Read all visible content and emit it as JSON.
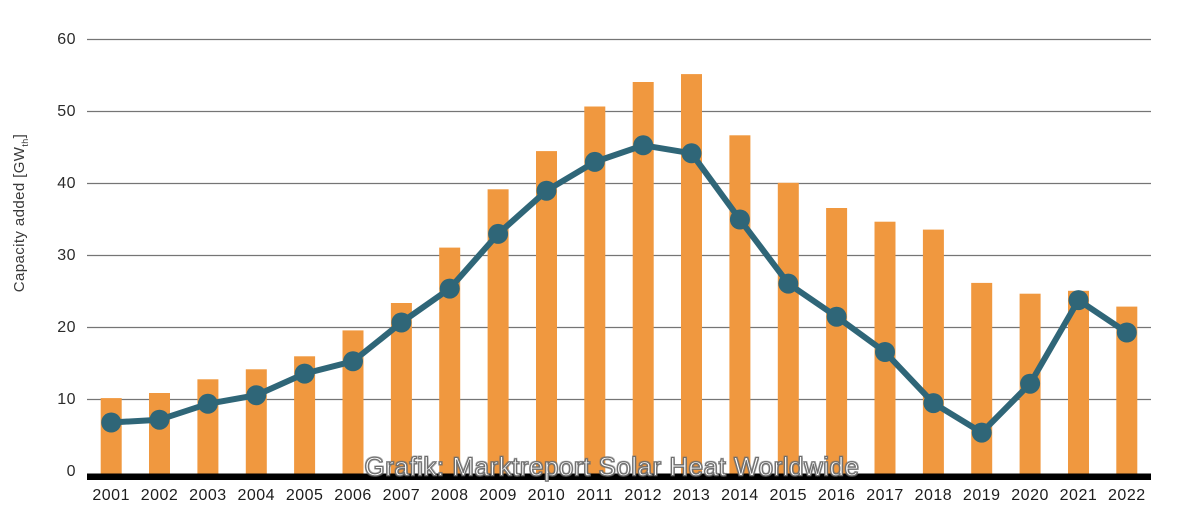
{
  "chart_data": {
    "type": "bar+line",
    "title": "",
    "xlabel": "",
    "ylabel": "Capacity added [GWth]",
    "ylabel_parts": {
      "prefix": "Capacity added [GW",
      "sub": "th",
      "suffix": "]"
    },
    "categories": [
      "2001",
      "2002",
      "2003",
      "2004",
      "2005",
      "2006",
      "2007",
      "2008",
      "2009",
      "2010",
      "2011",
      "2012",
      "2013",
      "2014",
      "2015",
      "2016",
      "2017",
      "2018",
      "2019",
      "2020",
      "2021",
      "2022"
    ],
    "series": [
      {
        "name": "capacity-added-bars",
        "type": "bar",
        "values": [
          10.2,
          10.9,
          12.8,
          14.2,
          16.0,
          19.6,
          23.4,
          31.1,
          39.2,
          44.5,
          50.7,
          54.1,
          55.2,
          46.7,
          40.1,
          36.6,
          34.7,
          33.6,
          26.2,
          24.7,
          25.1,
          22.9
        ]
      },
      {
        "name": "capacity-added-line",
        "type": "line",
        "values": [
          6.8,
          7.2,
          9.4,
          10.6,
          13.6,
          15.3,
          20.7,
          25.4,
          33.0,
          39.0,
          43.0,
          45.3,
          44.2,
          35.0,
          26.1,
          21.5,
          16.6,
          9.5,
          5.4,
          12.2,
          23.8,
          19.3
        ]
      }
    ],
    "ylim": [
      0,
      60
    ],
    "yticks": [
      0,
      10,
      20,
      30,
      40,
      50,
      60
    ],
    "grid": "horizontal",
    "legend": "none",
    "watermark": "Grafik: Marktreport Solar Heat Worldwide"
  },
  "colors": {
    "bar": "#F0983F",
    "line": "#2F6678",
    "grid": "#757575",
    "axis": "#000000",
    "tick_text": "#1d1d1d",
    "watermark_fill": "#ffffff",
    "watermark_outline": "#6e6e6e"
  }
}
